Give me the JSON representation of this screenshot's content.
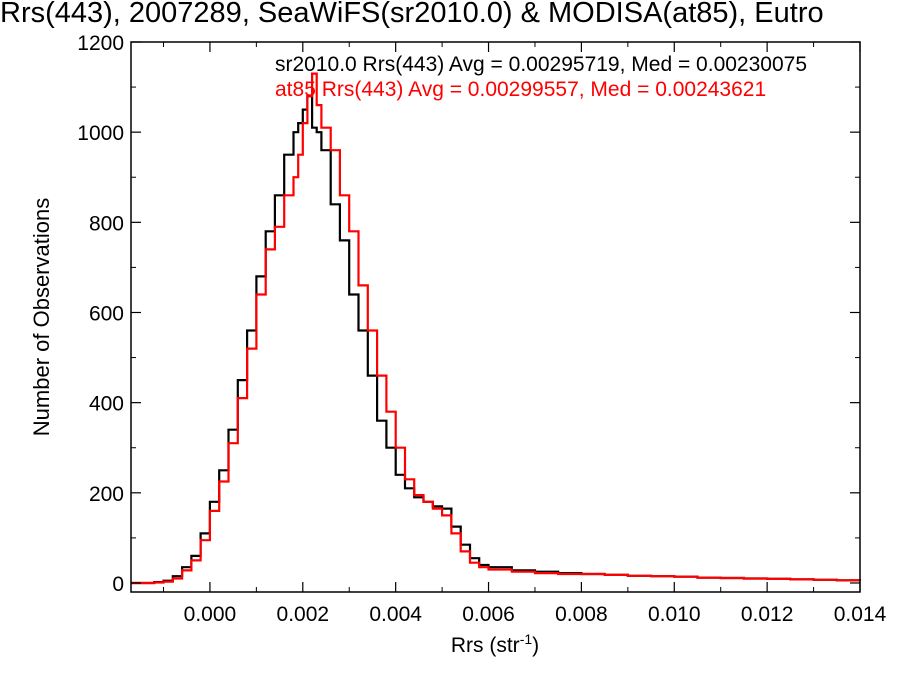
{
  "chart_data": {
    "type": "line",
    "title": "Rrs(443), 2007289, SeaWiFS(sr2010.0) & MODISA(at85), Eutro",
    "xlabel": "Rrs (str",
    "xlabel_sup": "-1",
    "xlabel_close": ")",
    "ylabel": "Number of Observations",
    "xlim": [
      -0.0017,
      0.014
    ],
    "ylim": [
      -20,
      1200
    ],
    "x_ticks": [
      0.0,
      0.002,
      0.004,
      0.006,
      0.008,
      0.01,
      0.012,
      0.014
    ],
    "x_tick_labels": [
      "0.000",
      "0.002",
      "0.004",
      "0.006",
      "0.008",
      "0.010",
      "0.012",
      "0.014"
    ],
    "y_ticks": [
      0,
      200,
      400,
      600,
      800,
      1000,
      1200
    ],
    "y_tick_labels": [
      "0",
      "200",
      "400",
      "600",
      "800",
      "1000",
      "1200"
    ],
    "annotations": [
      "sr2010.0 Rrs(443) Avg = 0.00295719, Med = 0.00230075",
      "at85 Rrs(443) Avg = 0.00299557, Med = 0.00243621"
    ],
    "series": [
      {
        "color": "#000000",
        "x": [
          -0.0017,
          -0.0012,
          -0.001,
          -0.0008,
          -0.0006,
          -0.0004,
          -0.0002,
          0.0,
          0.0002,
          0.0004,
          0.0006,
          0.0008,
          0.001,
          0.0012,
          0.0014,
          0.0016,
          0.0018,
          0.0019,
          0.002,
          0.0021,
          0.0022,
          0.0023,
          0.0024,
          0.0026,
          0.0028,
          0.003,
          0.0032,
          0.0034,
          0.0036,
          0.0038,
          0.004,
          0.0042,
          0.0044,
          0.0046,
          0.0048,
          0.005,
          0.0052,
          0.0054,
          0.0056,
          0.0058,
          0.006,
          0.0065,
          0.007,
          0.0075,
          0.008,
          0.0085,
          0.009,
          0.0095,
          0.01,
          0.0105,
          0.011,
          0.0115,
          0.012,
          0.0125,
          0.013,
          0.0135,
          0.014
        ],
        "values": [
          0,
          2,
          5,
          15,
          35,
          60,
          110,
          180,
          250,
          340,
          450,
          560,
          680,
          780,
          860,
          950,
          1000,
          1020,
          1050,
          1080,
          1010,
          1000,
          960,
          840,
          760,
          640,
          560,
          460,
          360,
          300,
          240,
          210,
          190,
          180,
          170,
          165,
          125,
          85,
          55,
          40,
          35,
          28,
          25,
          22,
          20,
          18,
          16,
          15,
          14,
          12,
          11,
          10,
          9,
          8,
          7,
          6,
          6
        ]
      },
      {
        "color": "#ff0000",
        "x": [
          -0.0017,
          -0.0012,
          -0.001,
          -0.0008,
          -0.0006,
          -0.0004,
          -0.0002,
          0.0,
          0.0002,
          0.0004,
          0.0006,
          0.0008,
          0.001,
          0.0012,
          0.0014,
          0.0016,
          0.0018,
          0.0019,
          0.002,
          0.0021,
          0.0022,
          0.0023,
          0.0024,
          0.0026,
          0.0028,
          0.003,
          0.0032,
          0.0034,
          0.0036,
          0.0038,
          0.004,
          0.0042,
          0.0044,
          0.0046,
          0.0048,
          0.005,
          0.0052,
          0.0054,
          0.0056,
          0.0058,
          0.006,
          0.0065,
          0.007,
          0.0075,
          0.008,
          0.0085,
          0.009,
          0.0095,
          0.01,
          0.0105,
          0.011,
          0.0115,
          0.012,
          0.0125,
          0.013,
          0.0135,
          0.014
        ],
        "values": [
          0,
          1,
          3,
          10,
          28,
          50,
          95,
          160,
          225,
          310,
          410,
          520,
          640,
          740,
          790,
          860,
          900,
          950,
          1020,
          1080,
          1130,
          1060,
          1010,
          960,
          860,
          780,
          660,
          560,
          460,
          380,
          300,
          230,
          195,
          180,
          165,
          150,
          110,
          70,
          45,
          35,
          30,
          25,
          22,
          20,
          20,
          18,
          16,
          15,
          14,
          12,
          11,
          10,
          9,
          8,
          7,
          6,
          5
        ]
      }
    ]
  }
}
